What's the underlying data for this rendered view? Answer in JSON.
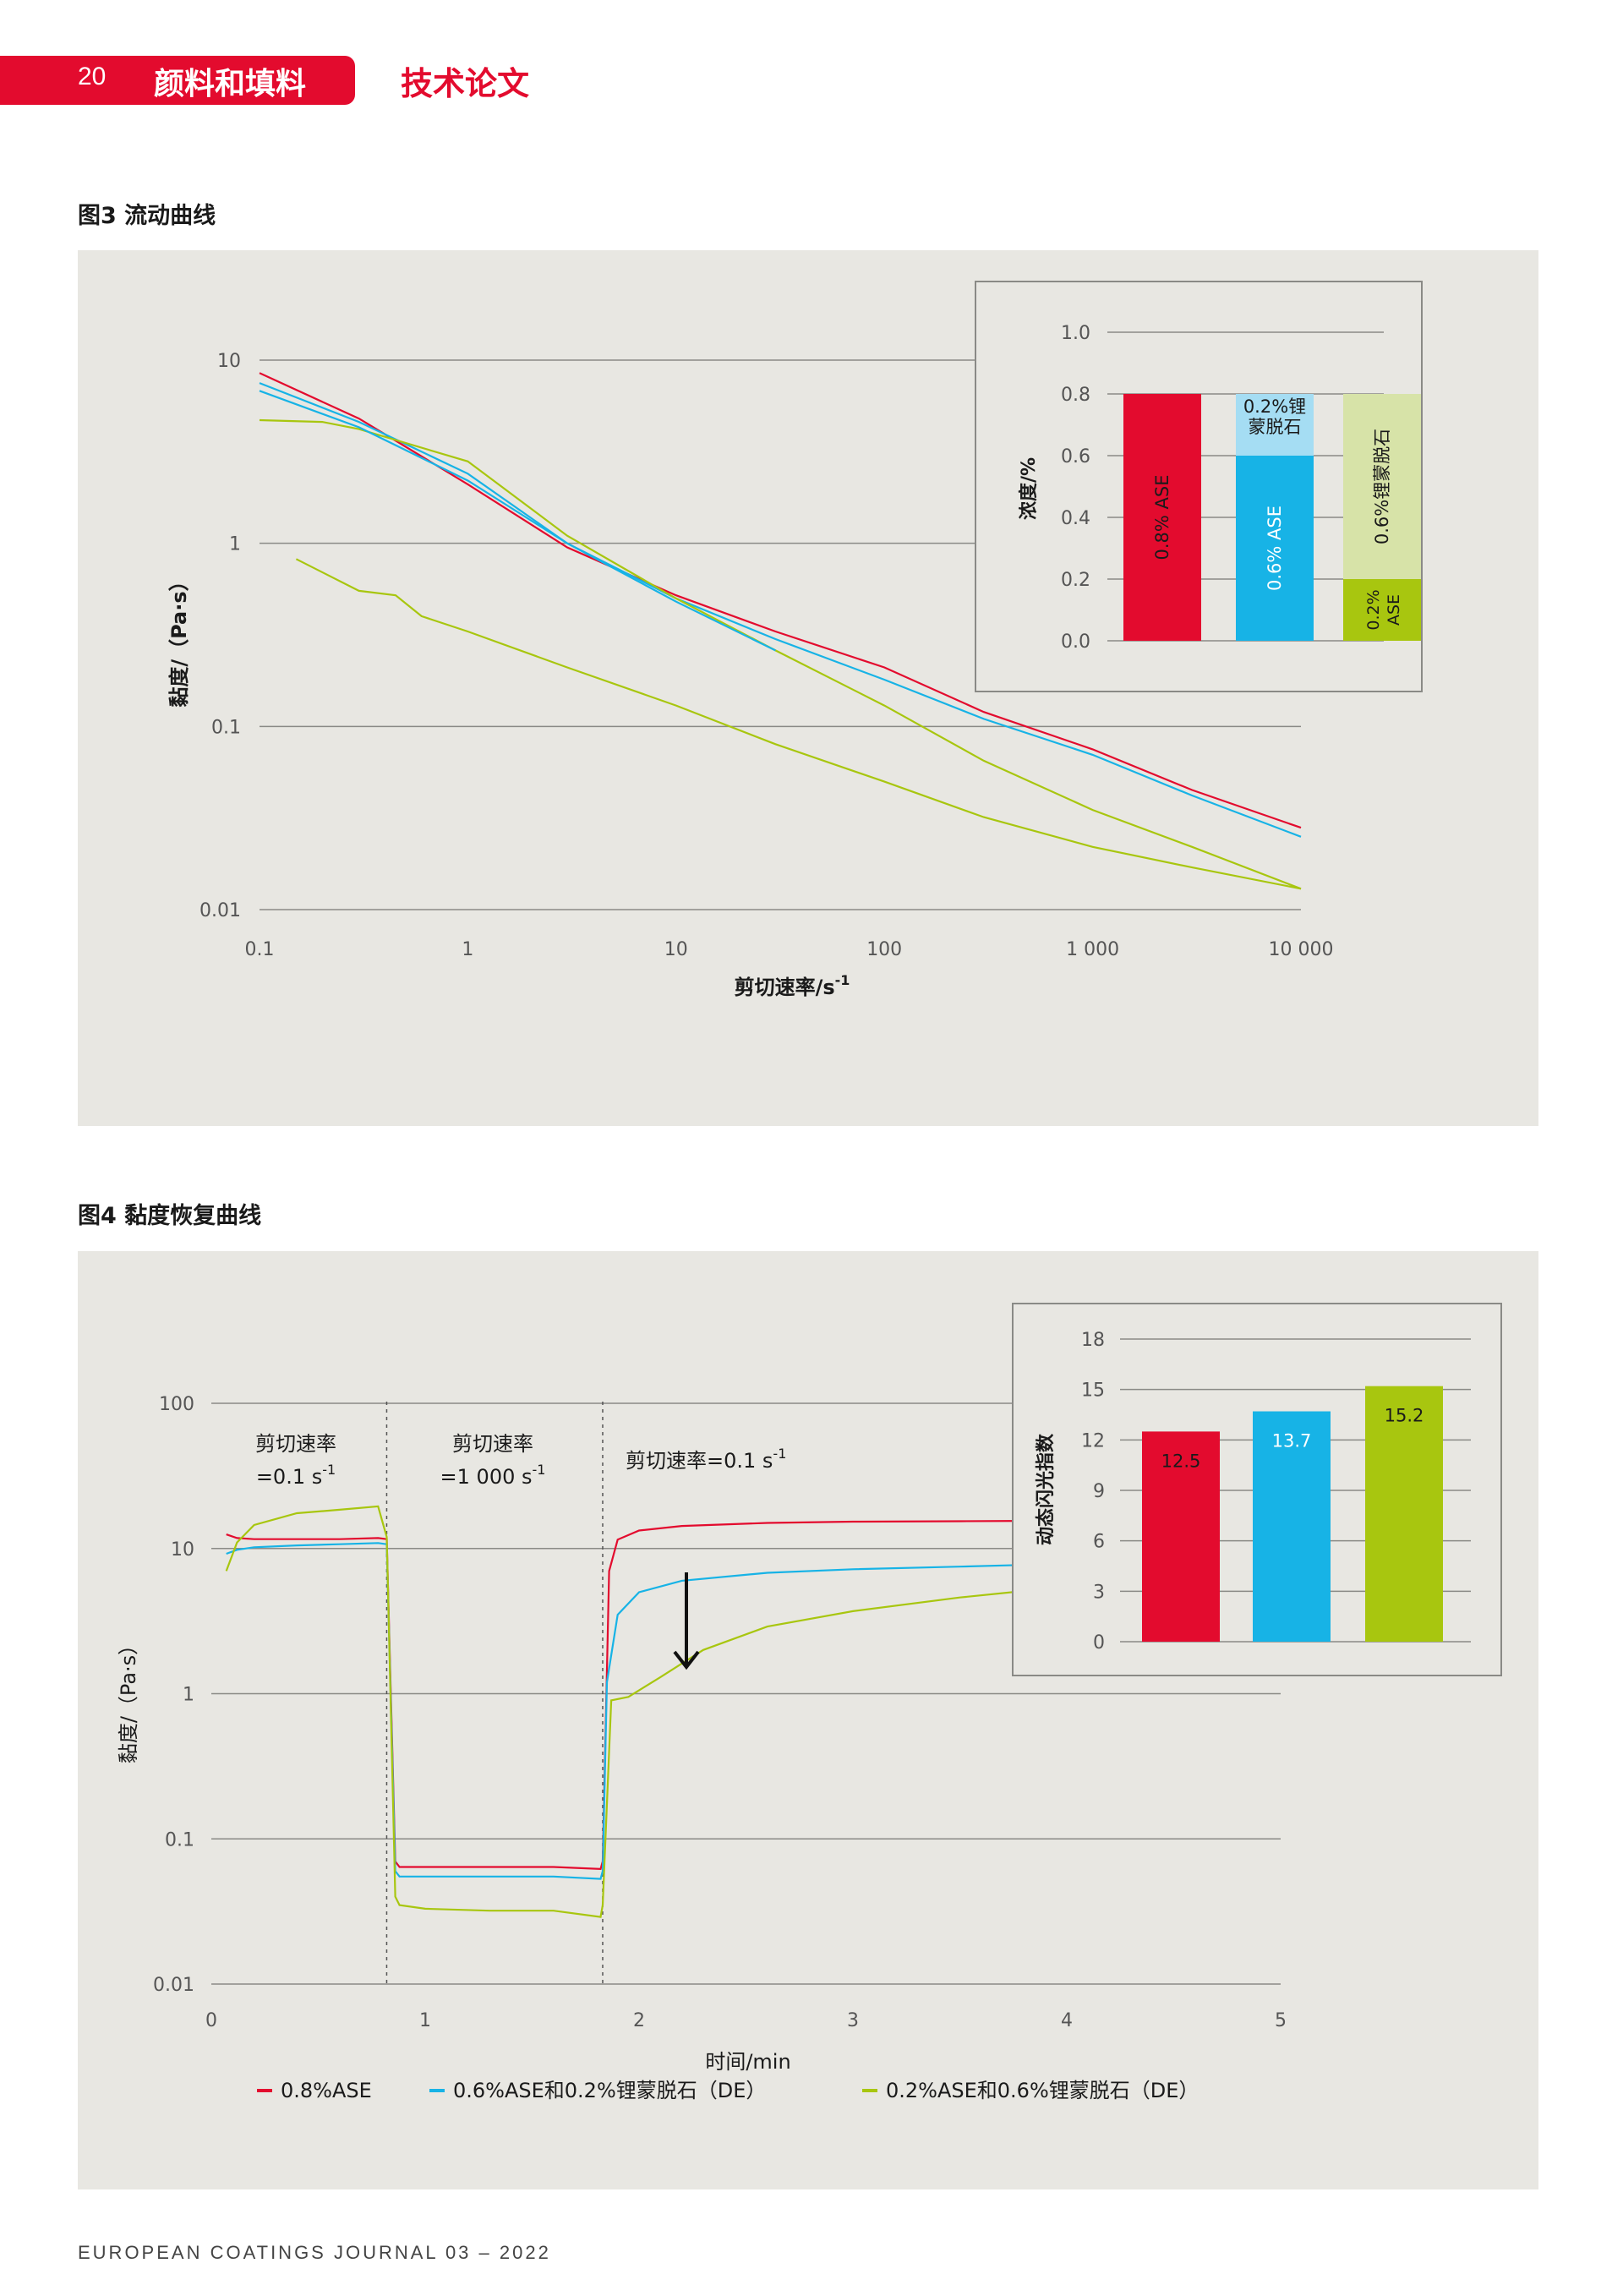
{
  "header": {
    "page_number": "20",
    "section": "颜料和填料",
    "article_type": "技术论文"
  },
  "footer": "EUROPEAN COATINGS JOURNAL 03 – 2022",
  "figure3": {
    "title": "图3 流动曲线"
  },
  "figure4": {
    "title": "图4 黏度恢复曲线"
  },
  "colors": {
    "red": "#e30b2e",
    "blue": "#17b3e6",
    "green": "#a8c60f",
    "light_blue": "#a5ddf3",
    "light_green": "#d7e3a8",
    "panel_bg": "#e8e7e2"
  },
  "chart_data": [
    {
      "id": "flow",
      "type": "line",
      "ylabel": "黏度/（Pa·s）",
      "xlabel": "剪切速率/s",
      "xlabel_sup": "-1",
      "x_scale": "log",
      "y_scale": "log",
      "xlim": [
        0.1,
        10000
      ],
      "ylim": [
        0.01,
        10
      ],
      "x_ticks": [
        0.1,
        1,
        10,
        100,
        1000,
        10000
      ],
      "x_tick_labels": [
        "0.1",
        "1",
        "10",
        "100",
        "1 000",
        "10 000"
      ],
      "y_ticks": [
        10,
        1,
        0.1,
        0.01
      ],
      "y_tick_labels": [
        "10",
        "1",
        "0.1",
        "0.01"
      ],
      "series": [
        {
          "color": "red",
          "x": [
            0.1,
            0.3,
            1,
            3,
            10,
            30,
            100,
            300,
            1000,
            3000,
            10000
          ],
          "y": [
            8.5,
            4.8,
            2.1,
            0.95,
            0.52,
            0.33,
            0.21,
            0.12,
            0.075,
            0.045,
            0.028
          ]
        },
        {
          "color": "blue",
          "x": [
            0.1,
            0.3,
            1,
            3,
            10,
            30,
            100,
            300,
            1000,
            3000,
            10000
          ],
          "y": [
            7.5,
            4.6,
            2.4,
            1.0,
            0.5,
            0.3,
            0.18,
            0.11,
            0.07,
            0.042,
            0.025
          ]
        },
        {
          "color": "green",
          "x": [
            0.1,
            0.2,
            0.3,
            1,
            3,
            10,
            30,
            100,
            300,
            1000,
            3000,
            10000
          ],
          "y": [
            4.7,
            4.6,
            4.2,
            2.8,
            1.1,
            0.5,
            0.26,
            0.13,
            0.065,
            0.035,
            0.022,
            0.013
          ]
        },
        {
          "color": "green",
          "x": [
            0.15,
            0.3,
            0.45,
            0.6,
            1,
            3,
            10,
            30,
            100,
            300,
            1000,
            3000,
            10000
          ],
          "y": [
            0.82,
            0.55,
            0.52,
            0.4,
            0.33,
            0.21,
            0.13,
            0.08,
            0.05,
            0.032,
            0.022,
            0.017,
            0.013
          ]
        },
        {
          "color": "blue",
          "x": [
            0.1,
            0.3,
            1,
            3,
            10,
            30
          ],
          "y": [
            6.8,
            4.3,
            2.2,
            1.0,
            0.48,
            0.26
          ]
        }
      ]
    },
    {
      "id": "concentration",
      "type": "bar",
      "ylabel": "浓度/%",
      "ylim": [
        0,
        1.0
      ],
      "y_ticks": [
        1.0,
        0.8,
        0.6,
        0.4,
        0.2,
        0.0
      ],
      "y_tick_labels": [
        "1.0",
        "0.8",
        "0.6",
        "0.4",
        "0.2",
        "0.0"
      ],
      "stacked_bars": [
        {
          "segments": [
            {
              "value": 0.8,
              "color": "red",
              "label": "0.8% ASE",
              "text_color": "dark"
            }
          ]
        },
        {
          "segments": [
            {
              "value": 0.6,
              "color": "blue",
              "label": "0.6% ASE",
              "text_color": "white"
            },
            {
              "value": 0.2,
              "color": "light_blue",
              "label": "0.2%锂蒙脱石",
              "text_color": "dark"
            }
          ]
        },
        {
          "segments": [
            {
              "value": 0.2,
              "color": "green",
              "label": "0.2% ASE",
              "text_color": "dark"
            },
            {
              "value": 0.6,
              "color": "light_green",
              "label": "0.6%锂蒙脱石",
              "text_color": "dark"
            }
          ]
        }
      ]
    },
    {
      "id": "recovery",
      "type": "line",
      "ylabel": "黏度/（Pa·s）",
      "xlabel": "时间/min",
      "y_scale": "log",
      "xlim": [
        0,
        5
      ],
      "ylim": [
        0.01,
        100
      ],
      "x_ticks": [
        0,
        1,
        2,
        3,
        4,
        5
      ],
      "x_tick_labels": [
        "0",
        "1",
        "2",
        "3",
        "4",
        "5"
      ],
      "y_ticks": [
        100,
        10,
        1,
        0.1,
        0.01
      ],
      "y_tick_labels": [
        "100",
        "10",
        "1",
        "0.1",
        "0.01"
      ],
      "phase_dividers": [
        0.82,
        1.83
      ],
      "annotations": [
        {
          "line1": "剪切速率",
          "line2": "=0.1 s",
          "sup": "-1"
        },
        {
          "line1": "剪切速率",
          "line2": "=1 000 s",
          "sup": "-1"
        },
        {
          "line1": "剪切速率=0.1 s",
          "line2": "",
          "sup": "-1"
        }
      ],
      "series": [
        {
          "name": "0.8%ASE",
          "color": "red",
          "x": [
            0.07,
            0.12,
            0.2,
            0.4,
            0.6,
            0.78,
            0.82,
            0.86,
            0.88,
            1.0,
            1.3,
            1.6,
            1.82,
            1.83,
            1.86,
            1.9,
            2.0,
            2.2,
            2.6,
            3.0,
            3.5,
            3.8
          ],
          "y": [
            12.5,
            11.8,
            11.6,
            11.6,
            11.6,
            11.8,
            11.6,
            0.07,
            0.064,
            0.064,
            0.064,
            0.064,
            0.062,
            0.07,
            7.0,
            11.5,
            13.3,
            14.3,
            15.0,
            15.3,
            15.4,
            15.5
          ]
        },
        {
          "name": "0.6%ASE和0.2%锂蒙脱石（DE）",
          "color": "blue",
          "x": [
            0.07,
            0.12,
            0.2,
            0.4,
            0.6,
            0.78,
            0.82,
            0.86,
            0.88,
            1.0,
            1.3,
            1.6,
            1.82,
            1.83,
            1.85,
            1.9,
            2.0,
            2.2,
            2.6,
            3.0,
            3.5,
            3.8
          ],
          "y": [
            9.2,
            9.8,
            10.2,
            10.5,
            10.7,
            10.9,
            10.7,
            0.06,
            0.055,
            0.055,
            0.055,
            0.055,
            0.053,
            0.06,
            1.2,
            3.5,
            5.0,
            6.0,
            6.8,
            7.2,
            7.5,
            7.7
          ]
        },
        {
          "name": "0.2%ASE和0.6%锂蒙脱石（DE）",
          "color": "green",
          "x": [
            0.07,
            0.12,
            0.2,
            0.4,
            0.6,
            0.78,
            0.82,
            0.86,
            0.88,
            1.0,
            1.3,
            1.6,
            1.82,
            1.83,
            1.87,
            1.95,
            2.1,
            2.3,
            2.6,
            3.0,
            3.5,
            3.8
          ],
          "y": [
            7.0,
            11.0,
            14.5,
            17.5,
            18.5,
            19.5,
            12.0,
            0.04,
            0.035,
            0.033,
            0.032,
            0.032,
            0.029,
            0.035,
            0.9,
            0.95,
            1.3,
            2.0,
            2.9,
            3.7,
            4.6,
            5.1
          ]
        }
      ],
      "legend": [
        "0.8%ASE",
        "0.6%ASE和0.2%锂蒙脱石（DE）",
        "0.2%ASE和0.6%锂蒙脱石（DE）"
      ]
    },
    {
      "id": "gloss",
      "type": "bar",
      "ylabel": "动态闪光指数",
      "ylim": [
        0,
        18
      ],
      "y_ticks": [
        18,
        15,
        12,
        9,
        6,
        3,
        0
      ],
      "y_tick_labels": [
        "18",
        "15",
        "12",
        "9",
        "6",
        "3",
        "0"
      ],
      "bars": [
        {
          "value": 12.5,
          "label": "12.5",
          "color": "red"
        },
        {
          "value": 13.7,
          "label": "13.7",
          "color": "blue"
        },
        {
          "value": 15.2,
          "label": "15.2",
          "color": "green"
        }
      ]
    }
  ]
}
